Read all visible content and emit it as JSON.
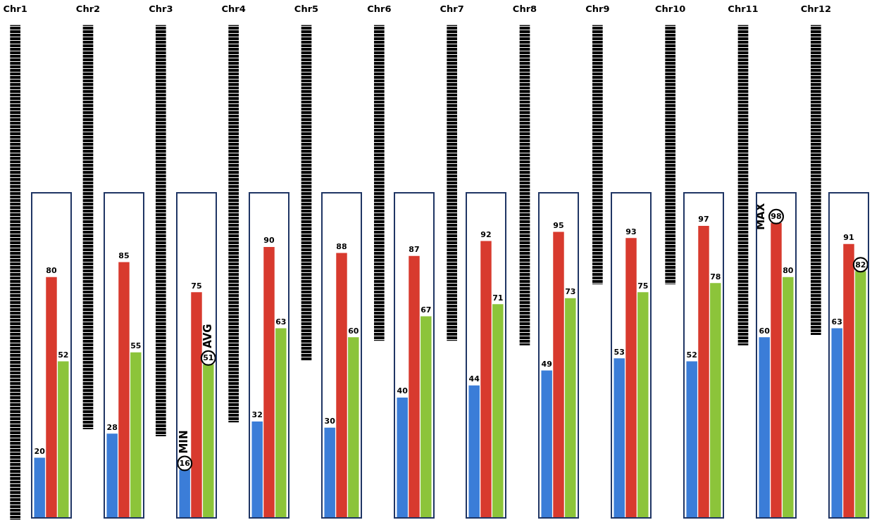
{
  "chart_data": [
    {
      "type": "bar",
      "categories": [
        "Chr1",
        "Chr2",
        "Chr3",
        "Chr4",
        "Chr5",
        "Chr6",
        "Chr7",
        "Chr8",
        "Chr9",
        "Chr10",
        "Chr11",
        "Chr12"
      ],
      "values": [
        43,
        35.1,
        35.7,
        34.5,
        29.1,
        27.4,
        27.4,
        27.8,
        22.5,
        22.5,
        27.8,
        26.9
      ],
      "color": "#000000",
      "ylim": [
        0,
        43
      ],
      "yticks": [],
      "grid": false,
      "tick_labels": "x"
    },
    {
      "type": "bar",
      "categories": [
        "Chr1",
        "Chr2",
        "Chr3",
        "Chr4",
        "Chr5",
        "Chr6",
        "Chr7",
        "Chr8",
        "Chr9",
        "Chr10",
        "Chr11",
        "Chr12"
      ],
      "series": [
        {
          "color": "#3b7dd8",
          "values": [
            20,
            28,
            16,
            32,
            30,
            40,
            44,
            49,
            53,
            52,
            60,
            63
          ]
        },
        {
          "color": "#d83a2e",
          "values": [
            80,
            85,
            75,
            90,
            88,
            87,
            92,
            95,
            93,
            97,
            98,
            91
          ]
        },
        {
          "color": "#8cc43a",
          "values": [
            52,
            55,
            51,
            63,
            60,
            67,
            71,
            73,
            75,
            78,
            80,
            82
          ]
        }
      ],
      "ylim": [
        0,
        108
      ],
      "yticks": [],
      "grid": false,
      "tick_labels": false,
      "data_labels": true,
      "annotations": [
        {
          "text": "MIN",
          "category": "Chr3",
          "value": 16
        },
        {
          "text": "AVG",
          "category": "Chr3",
          "value": 51
        },
        {
          "text": "MAX",
          "category": "Chr11",
          "value": 98
        },
        {
          "category": "Chr12",
          "value": 82
        }
      ]
    }
  ]
}
